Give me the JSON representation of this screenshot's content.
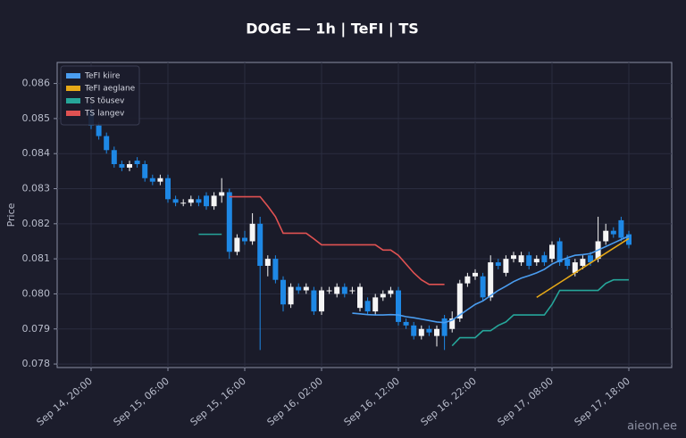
{
  "chart_data": {
    "type": "candlestick",
    "title": "DOGE — 1h  |  TeFI  |  TS",
    "y_label": "Price",
    "watermark": "aieon.ee",
    "categories": [
      "Sep 14, 20:00",
      null,
      null,
      null,
      null,
      null,
      null,
      null,
      null,
      null,
      "Sep 15, 06:00",
      null,
      null,
      null,
      null,
      null,
      null,
      null,
      null,
      null,
      "Sep 15, 16:00",
      null,
      null,
      null,
      null,
      null,
      null,
      null,
      null,
      null,
      "Sep 16, 02:00",
      null,
      null,
      null,
      null,
      null,
      null,
      null,
      null,
      null,
      "Sep 16, 12:00",
      null,
      null,
      null,
      null,
      null,
      null,
      null,
      null,
      null,
      "Sep 16, 22:00",
      null,
      null,
      null,
      null,
      null,
      null,
      null,
      null,
      null,
      "Sep 17, 08:00",
      null,
      null,
      null,
      null,
      null,
      null,
      null,
      null,
      null,
      "Sep 17, 18:00"
    ],
    "open": [
      0.0852,
      0.0848,
      0.0845,
      0.0841,
      0.0837,
      0.0836,
      0.0838,
      0.0837,
      0.0833,
      0.0832,
      0.0833,
      0.0827,
      0.0826,
      0.0826,
      0.0827,
      0.0828,
      0.0825,
      0.0828,
      0.0829,
      0.0812,
      0.0816,
      0.0815,
      0.082,
      0.0808,
      0.081,
      0.0804,
      0.0797,
      0.0802,
      0.0801,
      0.0801,
      0.0795,
      0.0801,
      0.08,
      0.0802,
      0.0801,
      0.0796,
      0.0798,
      0.0795,
      0.0799,
      0.08,
      0.0801,
      0.0792,
      0.0791,
      0.0788,
      0.079,
      0.0788,
      0.0793,
      0.079,
      0.0793,
      0.0803,
      0.0805,
      0.0805,
      0.0799,
      0.0809,
      0.0806,
      0.081,
      0.0809,
      0.0811,
      0.0809,
      0.0811,
      0.081,
      0.0815,
      0.081,
      0.0806,
      0.0808,
      0.0811,
      0.081,
      0.0815,
      0.0818,
      0.0821,
      0.0817
    ],
    "high": [
      0.0854,
      0.0849,
      0.0846,
      0.0842,
      0.0838,
      0.0838,
      0.0839,
      0.0838,
      0.0834,
      0.0834,
      0.0834,
      0.0828,
      0.0827,
      0.0828,
      0.0828,
      0.0829,
      0.0829,
      0.0833,
      0.083,
      0.0817,
      0.0818,
      0.0823,
      0.0822,
      0.0811,
      0.0811,
      0.0805,
      0.0803,
      0.0803,
      0.0803,
      0.0802,
      0.0802,
      0.0802,
      0.0803,
      0.0803,
      0.0802,
      0.0803,
      0.0799,
      0.08,
      0.0801,
      0.0802,
      0.0802,
      0.0793,
      0.0792,
      0.0791,
      0.0791,
      0.0791,
      0.0794,
      0.0795,
      0.0804,
      0.0806,
      0.0807,
      0.0806,
      0.0811,
      0.081,
      0.0811,
      0.0812,
      0.0812,
      0.0812,
      0.0811,
      0.0812,
      0.0815,
      0.0816,
      0.0811,
      0.081,
      0.0811,
      0.0812,
      0.0822,
      0.082,
      0.0819,
      0.0822,
      0.0818
    ],
    "low": [
      0.0847,
      0.0844,
      0.084,
      0.0836,
      0.0835,
      0.0835,
      0.0836,
      0.0832,
      0.0831,
      0.0831,
      0.0826,
      0.0825,
      0.0825,
      0.0825,
      0.0825,
      0.0824,
      0.0824,
      0.0826,
      0.081,
      0.0811,
      0.0814,
      0.0814,
      0.0784,
      0.0805,
      0.0803,
      0.0795,
      0.0796,
      0.08,
      0.08,
      0.0794,
      0.0794,
      0.08,
      0.0799,
      0.0799,
      0.08,
      0.0795,
      0.0794,
      0.0794,
      0.0798,
      0.0799,
      0.0791,
      0.079,
      0.0787,
      0.0787,
      0.0788,
      0.0785,
      0.0784,
      0.0789,
      0.0792,
      0.0802,
      0.0804,
      0.0798,
      0.0798,
      0.0807,
      0.0805,
      0.0809,
      0.0808,
      0.0807,
      0.0808,
      0.0808,
      0.0809,
      0.0808,
      0.0807,
      0.0805,
      0.0807,
      0.0808,
      0.0809,
      0.0814,
      0.0816,
      0.0815,
      0.0813
    ],
    "close": [
      0.0848,
      0.0845,
      0.0841,
      0.0837,
      0.0836,
      0.0837,
      0.0837,
      0.0833,
      0.0832,
      0.0833,
      0.0827,
      0.0826,
      0.0826,
      0.0827,
      0.0826,
      0.0825,
      0.0828,
      0.0829,
      0.0812,
      0.0816,
      0.0815,
      0.082,
      0.0808,
      0.081,
      0.0804,
      0.0797,
      0.0802,
      0.0801,
      0.0802,
      0.0795,
      0.0801,
      0.0801,
      0.0802,
      0.08,
      0.0801,
      0.0802,
      0.0795,
      0.0799,
      0.08,
      0.0801,
      0.0792,
      0.0791,
      0.0788,
      0.079,
      0.0789,
      0.079,
      0.0788,
      0.0793,
      0.0803,
      0.0805,
      0.0806,
      0.0799,
      0.0809,
      0.0808,
      0.081,
      0.0811,
      0.0811,
      0.0808,
      0.081,
      0.0809,
      0.0814,
      0.0809,
      0.0808,
      0.0809,
      0.081,
      0.0809,
      0.0815,
      0.0818,
      0.0817,
      0.0816,
      0.0814
    ],
    "up_color": "#f5f5f5",
    "down_color": "#1e88e5",
    "lines": [
      {
        "name": "TeFI kiire",
        "color": "#4a9df0",
        "values": [
          null,
          null,
          null,
          null,
          null,
          null,
          null,
          null,
          null,
          null,
          null,
          null,
          null,
          null,
          null,
          null,
          null,
          null,
          null,
          null,
          null,
          null,
          null,
          null,
          null,
          null,
          null,
          null,
          null,
          null,
          null,
          null,
          null,
          null,
          0.07945,
          0.07943,
          0.07941,
          0.0794,
          0.0794,
          0.07941,
          0.0794,
          0.07935,
          0.07932,
          0.07928,
          0.07924,
          0.0792,
          0.07918,
          0.07925,
          0.0794,
          0.07955,
          0.0797,
          0.0798,
          0.07995,
          0.0801,
          0.08022,
          0.08035,
          0.08045,
          0.08052,
          0.0806,
          0.0807,
          0.08085,
          0.08095,
          0.08103,
          0.0811,
          0.08112,
          0.08115,
          0.08125,
          0.08135,
          0.08145,
          0.08155,
          0.08165
        ]
      },
      {
        "name": "TeFI aeglane",
        "color": "#e6a817",
        "values": [
          null,
          null,
          null,
          null,
          null,
          null,
          null,
          null,
          null,
          null,
          null,
          null,
          null,
          null,
          null,
          null,
          null,
          null,
          null,
          null,
          null,
          null,
          null,
          null,
          null,
          null,
          null,
          null,
          null,
          null,
          null,
          null,
          null,
          null,
          null,
          null,
          null,
          null,
          null,
          null,
          null,
          null,
          null,
          null,
          null,
          null,
          null,
          null,
          null,
          null,
          null,
          null,
          null,
          null,
          null,
          null,
          null,
          null,
          0.0799,
          0.08004,
          0.08018,
          0.08032,
          0.08046,
          0.0806,
          0.08074,
          0.08088,
          0.08102,
          0.08116,
          0.0813,
          0.08144,
          0.08158
        ]
      },
      {
        "name": "TS tõusev",
        "color": "#26a69a",
        "values": [
          null,
          null,
          null,
          null,
          null,
          null,
          null,
          null,
          null,
          null,
          null,
          null,
          null,
          null,
          0.0817,
          0.0817,
          0.0817,
          0.0817,
          null,
          null,
          null,
          null,
          null,
          null,
          null,
          null,
          null,
          null,
          null,
          null,
          null,
          null,
          null,
          null,
          null,
          null,
          null,
          null,
          null,
          null,
          null,
          null,
          null,
          null,
          null,
          null,
          null,
          0.07852,
          0.07875,
          0.07875,
          0.07875,
          0.07895,
          0.07895,
          0.0791,
          0.0792,
          0.0794,
          0.0794,
          0.0794,
          0.0794,
          0.0794,
          0.0797,
          0.0801,
          0.0801,
          0.0801,
          0.0801,
          0.0801,
          0.0801,
          0.0803,
          0.0804,
          0.0804,
          0.0804
        ]
      },
      {
        "name": "TS langev",
        "color": "#e05252",
        "values": [
          null,
          null,
          null,
          null,
          null,
          null,
          null,
          null,
          null,
          null,
          null,
          null,
          null,
          null,
          null,
          null,
          null,
          null,
          0.08277,
          0.08277,
          0.08277,
          0.08277,
          0.08277,
          0.0825,
          0.0822,
          0.08173,
          0.08173,
          0.08173,
          0.08173,
          0.08157,
          0.0814,
          0.0814,
          0.0814,
          0.0814,
          0.0814,
          0.0814,
          0.0814,
          0.0814,
          0.08125,
          0.08125,
          0.0811,
          0.08085,
          0.0806,
          0.0804,
          0.08027,
          0.08027,
          0.08027,
          null,
          null,
          null,
          null,
          null,
          null,
          null,
          null,
          null,
          null,
          null,
          null,
          null,
          null,
          null,
          null,
          null,
          null,
          null,
          null,
          null,
          null,
          null,
          null
        ]
      }
    ],
    "ylim": [
      0.0779,
      0.0866
    ],
    "yticks": [
      0.078,
      0.079,
      {
        "value": 0.08,
        "label": "0.080"
      },
      0.081,
      0.082,
      0.083,
      0.084,
      0.085,
      0.086
    ],
    "grid": true,
    "legend": "upper left"
  }
}
